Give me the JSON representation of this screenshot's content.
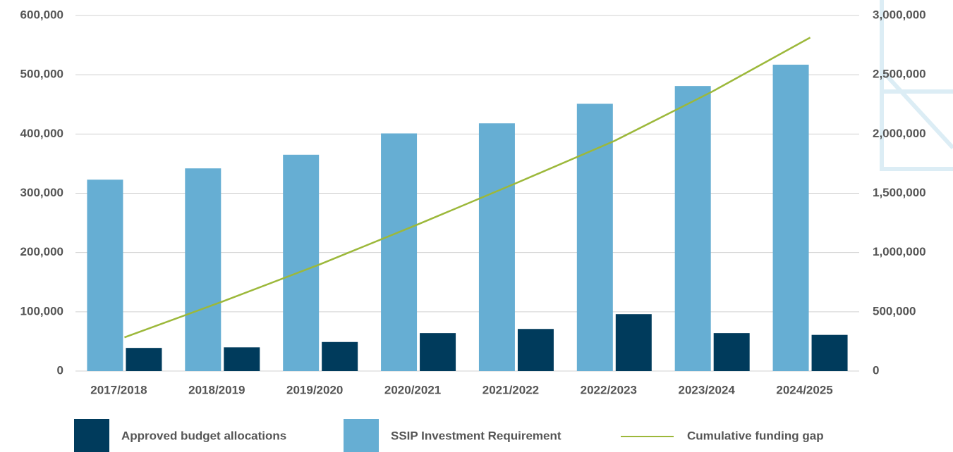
{
  "chart_data": {
    "type": "bar",
    "categories": [
      "2017/2018",
      "2018/2019",
      "2019/2020",
      "2020/2021",
      "2021/2022",
      "2022/2023",
      "2023/2024",
      "2024/2025"
    ],
    "series": [
      {
        "name": "Approved budget allocations",
        "color": "#003b5c",
        "values": [
          39000,
          40000,
          49000,
          64000,
          71000,
          96000,
          64000,
          61000
        ]
      },
      {
        "name": "SSIP Investment Requirement",
        "color": "#66aed3",
        "values": [
          323000,
          342000,
          365000,
          401000,
          418000,
          451000,
          481000,
          517000
        ]
      },
      {
        "name": "Cumulative funding gap",
        "color": "#9cb83a",
        "type": "line",
        "axis": "y2",
        "values": [
          284000,
          586000,
          902000,
          1239000,
          1586000,
          1941000,
          2358000,
          2814000
        ]
      }
    ],
    "ylim": [
      0,
      600000
    ],
    "yticks": [
      0,
      {
        "value": 100000,
        "label": "100,000"
      },
      {
        "value": 200000,
        "label": "200,000"
      },
      {
        "value": 300000,
        "label": "300,000"
      },
      {
        "value": 400000,
        "label": "400,000"
      },
      {
        "value": 500000,
        "label": "500,000"
      },
      {
        "value": 600000,
        "label": "600,000"
      }
    ],
    "y2lim": [
      0,
      3000000
    ],
    "y2ticks": [
      0,
      {
        "value": 500000,
        "label": "500,000"
      },
      {
        "value": 1000000,
        "label": "1,000,000"
      },
      {
        "value": 1500000,
        "label": "1,500,000"
      },
      {
        "value": 2000000,
        "label": "2,000,000"
      },
      {
        "value": 2500000,
        "label": "2,500,000"
      },
      {
        "value": 3000000,
        "label": "3,000,000"
      }
    ],
    "grid": true
  }
}
